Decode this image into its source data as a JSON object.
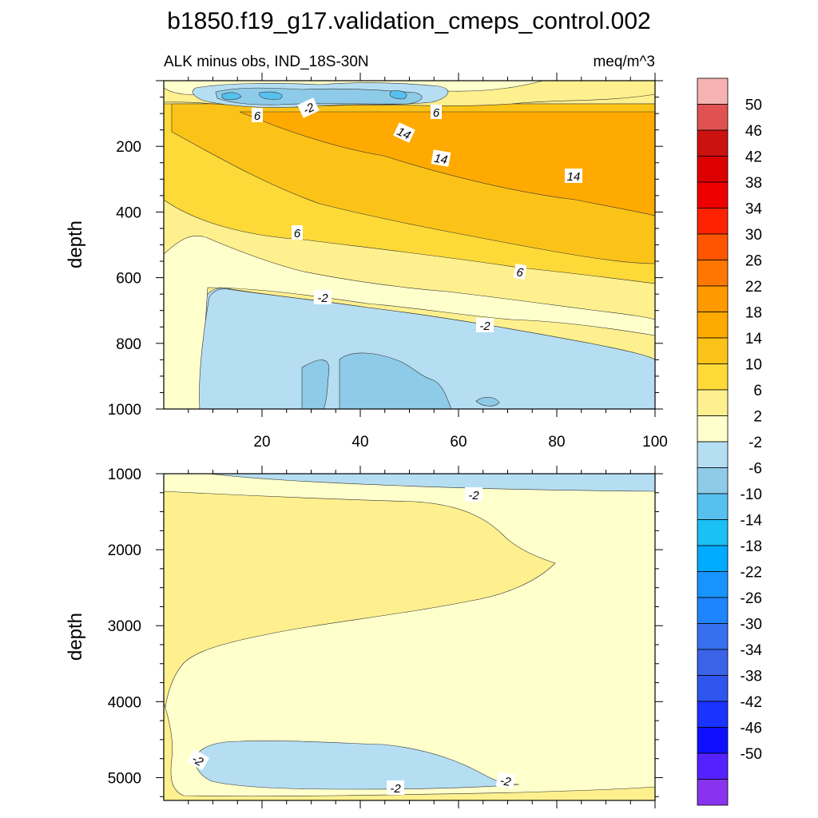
{
  "chart_data": {
    "type": "contour",
    "title": "b1850.f19_g17.validation_cmeps_control.002",
    "subtitle_left": "ALK minus obs, IND_18S-30N",
    "subtitle_right": "meq/m^3",
    "ylabel": "depth",
    "colorbar": {
      "levels": [
        "50",
        "46",
        "42",
        "38",
        "34",
        "30",
        "26",
        "22",
        "18",
        "14",
        "10",
        "6",
        "2",
        "-2",
        "-6",
        "-10",
        "-14",
        "-18",
        "-22",
        "-26",
        "-30",
        "-34",
        "-38",
        "-42",
        "-46",
        "-50"
      ],
      "colors": [
        "#f7b2b2",
        "#e05252",
        "#cc1111",
        "#dd0000",
        "#ee0000",
        "#ff2200",
        "#ff5500",
        "#ff7700",
        "#ff9900",
        "#ffaa00",
        "#fbc318",
        "#fdda37",
        "#fef08e",
        "#ffffcc",
        "#b5def2",
        "#8ecbe9",
        "#56c1ef",
        "#1bc0f5",
        "#00aaff",
        "#1794ff",
        "#1e85ff",
        "#3770ee",
        "#3a63e8",
        "#3055ee",
        "#1a33ff",
        "#0f0fff",
        "#5522ff",
        "#8833ee"
      ]
    },
    "panels": [
      {
        "name": "upper",
        "ylim": [
          1000,
          0
        ],
        "xlim": [
          0,
          100
        ],
        "yticks": [
          "200",
          "400",
          "600",
          "800",
          "1000"
        ],
        "xticks": [
          "20",
          "40",
          "60",
          "80",
          "100"
        ],
        "contour_labels": [
          "6",
          "-2",
          "6",
          "14",
          "14",
          "14",
          "6",
          "6",
          "-2",
          "-2"
        ]
      },
      {
        "name": "lower",
        "ylim": [
          5300,
          1000
        ],
        "xlim": [
          0,
          100
        ],
        "yticks": [
          "1000",
          "2000",
          "3000",
          "4000",
          "5000"
        ],
        "contour_labels": [
          "-2",
          "-2",
          "-2",
          "-2"
        ]
      }
    ]
  }
}
